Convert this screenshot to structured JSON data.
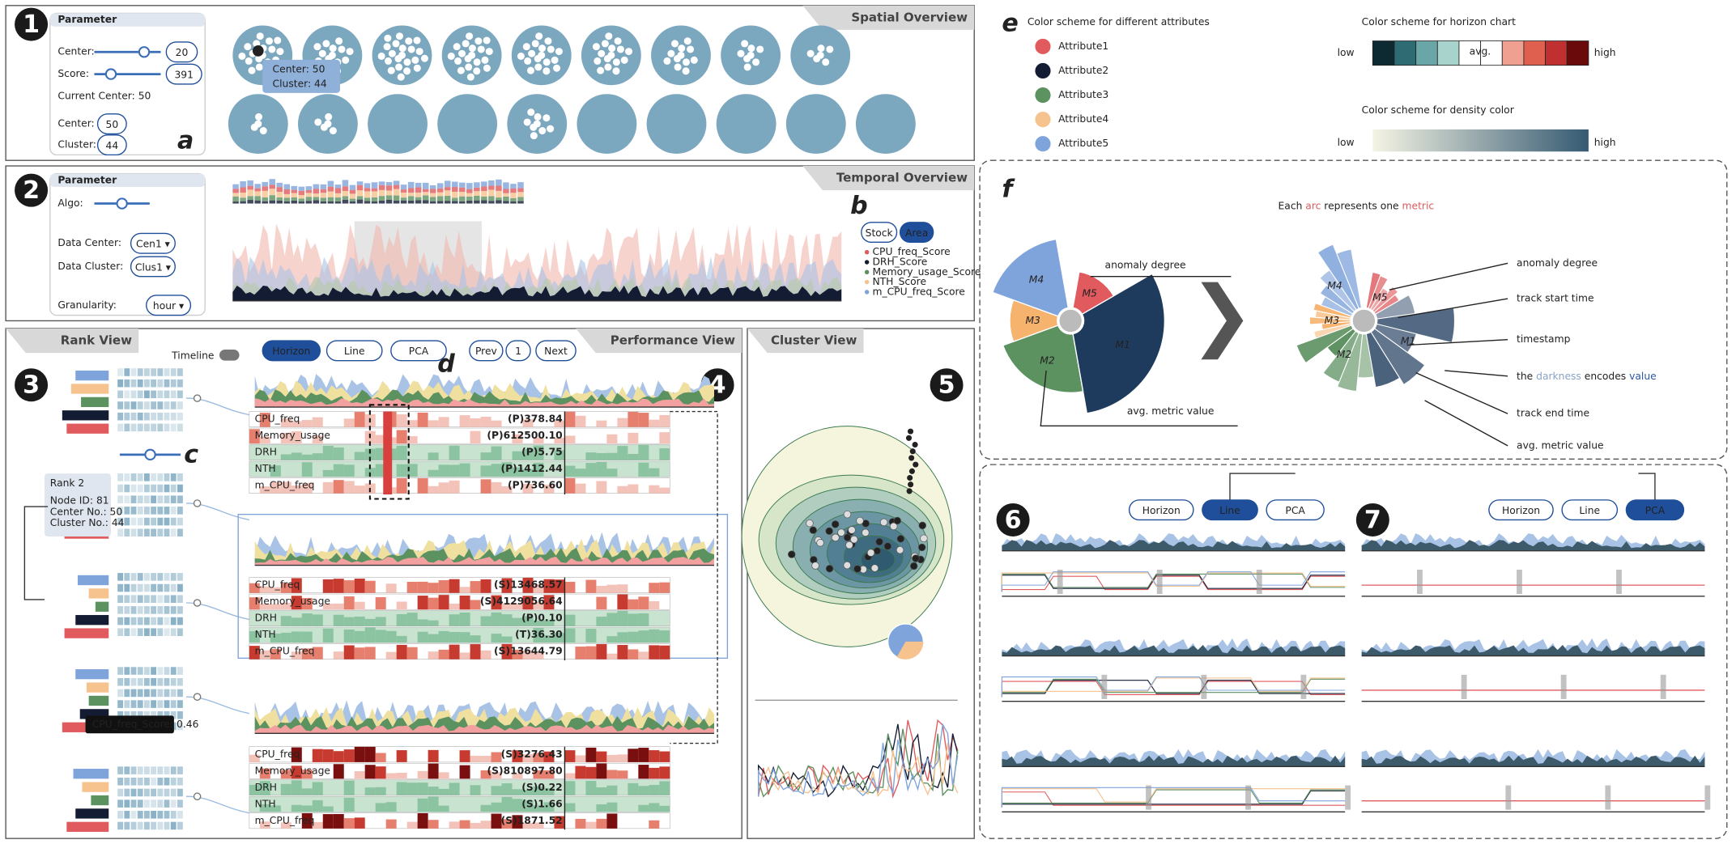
{
  "spatial_overview": {
    "badge": "1",
    "title": "Spatial Overview",
    "parameter": "Parameter",
    "center_label": "Center:",
    "center_value": "20",
    "score_label": "Score:",
    "score_value": "391",
    "current_center": "Current Center: 50",
    "center2_label": "Center:",
    "center2_value": "50",
    "cluster_label": "Cluster:",
    "cluster_value": "44",
    "marker": "a",
    "tooltip": [
      "Center: 50",
      "Cluster: 44"
    ]
  },
  "temporal_overview": {
    "badge": "2",
    "title": "Temporal Overview",
    "parameter": "Parameter",
    "algo_label": "Algo:",
    "data_center_label": "Data Center:",
    "data_center_value": "Cen1 ▾",
    "data_cluster_label": "Data Cluster:",
    "data_cluster_value": "Clus1 ▾",
    "granularity_label": "Granularity:",
    "granularity_value": "hour ▾",
    "marker": "b",
    "buttons": [
      "Stock",
      "Area"
    ],
    "legend": [
      "CPU_freq_Score",
      "DRH_Score",
      "Memory_usage_Score",
      "NTH_Score",
      "m_CPU_freq_Score"
    ]
  },
  "rank_view": {
    "badge": "3",
    "title": "Rank View",
    "timeline": "Timeline",
    "marker": "c",
    "card": {
      "title": "Rank 2",
      "lines": [
        "Node ID: 81",
        "Center No.: 50",
        "Cluster No.: 44"
      ]
    },
    "tooltip": "CPU_freq_Score: 0.46"
  },
  "performance_view": {
    "badge": "4",
    "title": "Performance View",
    "buttons": [
      "Horizon",
      "Line",
      "PCA"
    ],
    "pager": [
      "Prev",
      "1",
      "Next"
    ],
    "marker": "d",
    "metrics": [
      "CPU_freq",
      "Memory_usage",
      "DRH",
      "NTH",
      "m_CPU_freq"
    ],
    "groups": [
      [
        "(P)378.84",
        "(P)612500.10",
        "(P)5.75",
        "(P)1412.44",
        "(P)736.60"
      ],
      [
        "(S)13468.57",
        "(S)4129056.64",
        "(P)0.10",
        "(T)36.30",
        "(S)13644.79"
      ],
      [
        "(S)3276.43",
        "(S)810897.80",
        "(S)0.22",
        "(S)1.66",
        "(S)1871.52"
      ]
    ]
  },
  "cluster_view": {
    "badge": "5",
    "title": "Cluster View"
  },
  "legend": {
    "marker": "e",
    "attr_title": "Color scheme for different attributes",
    "attributes": [
      {
        "name": "Attribute1",
        "color": "#e05a5e"
      },
      {
        "name": "Attribute2",
        "color": "#141c33"
      },
      {
        "name": "Attribute3",
        "color": "#5c9160"
      },
      {
        "name": "Attribute4",
        "color": "#f6c28e"
      },
      {
        "name": "Attribute5",
        "color": "#7fa4dc"
      }
    ],
    "horizon_title": "Color scheme for horizon chart",
    "horizon_low": "low",
    "horizon_avg": "avg.",
    "horizon_high": "high",
    "density_title": "Color scheme for density color",
    "density_low": "low",
    "density_high": "high"
  },
  "glyph": {
    "marker": "f",
    "title": [
      "Each ",
      "arc",
      " represents one ",
      "metric"
    ],
    "metrics": [
      "M1",
      "M2",
      "M3",
      "M4",
      "M5"
    ],
    "left_labels": [
      "anomaly degree",
      "avg. metric value"
    ],
    "right_labels": [
      "anomaly degree",
      "track start time",
      "timestamp",
      "track end time",
      "avg. metric value"
    ],
    "darkness": [
      "the ",
      "darkness",
      " encodes ",
      "value"
    ]
  },
  "modes": [
    {
      "badge": "6",
      "buttons": [
        "Horizon",
        "Line",
        "PCA"
      ],
      "active": 1
    },
    {
      "badge": "7",
      "buttons": [
        "Horizon",
        "Line",
        "PCA"
      ],
      "active": 2
    }
  ]
}
